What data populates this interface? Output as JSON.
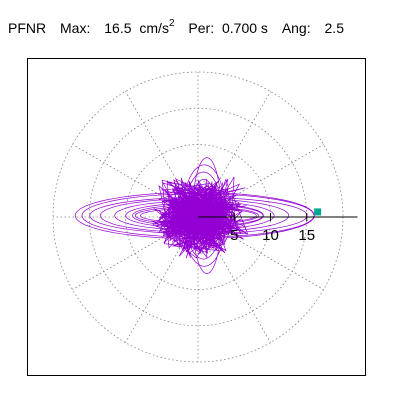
{
  "header": {
    "station": "PFNR",
    "max_label": "Max:",
    "max_value": "16.5",
    "max_unit": "cm/s",
    "max_unit_exp": "2",
    "per_label": "Per:",
    "per_value": "0.700 s",
    "ang_label": "Ang:",
    "ang_value": "2.5"
  },
  "chart_data": {
    "type": "polar-trace",
    "title": "",
    "max_amplitude": 16.5,
    "unit": "cm/s²",
    "period_s": 0.7,
    "angle_deg": 2.5,
    "radial_ticks": [
      5,
      10,
      15
    ],
    "radial_rings": [
      5,
      10,
      15,
      20
    ],
    "spoke_step_deg": 30,
    "grid": true,
    "colors": {
      "trace": "#9400d3",
      "max_marker": "#00a693",
      "axis": "#000000",
      "grid": "#808080"
    },
    "trace_shape": {
      "lobes_x": [
        16.5,
        16,
        15,
        13,
        11,
        9.5,
        9,
        8.5,
        8
      ],
      "lobes_y": [
        3.2,
        3.0,
        2.5,
        2.3,
        2.0,
        1.7,
        1.5,
        1.2,
        1.0
      ],
      "vertical_x": [
        2,
        3,
        2.6,
        1.8,
        1.2
      ],
      "vertical_y": [
        8,
        7,
        6,
        5,
        4
      ]
    },
    "max_point": {
      "x": 16.5,
      "y": 0.7
    }
  }
}
